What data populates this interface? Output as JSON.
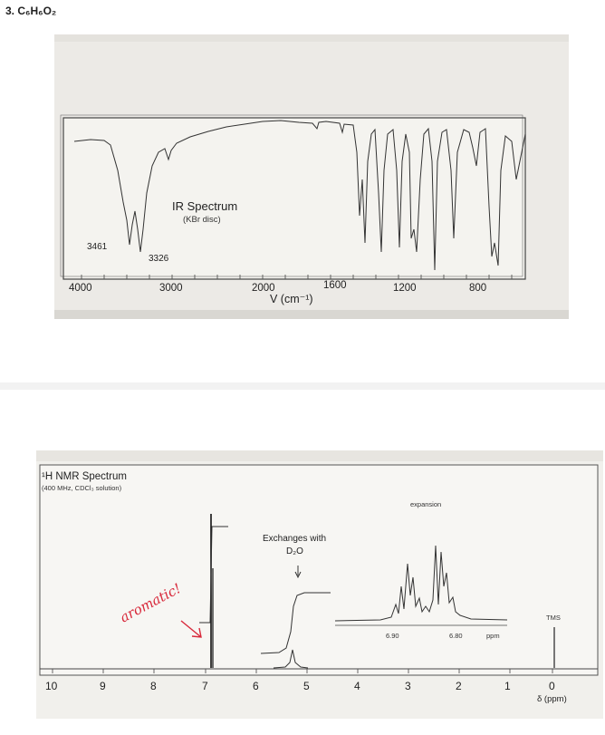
{
  "problem": {
    "title": "3. C₆H₆O₂"
  },
  "ir": {
    "title": "IR Spectrum",
    "subtitle": "(KBr disc)",
    "peak_labels": [
      "3461",
      "3326"
    ],
    "x_ticks": [
      "4000",
      "3000",
      "2000",
      "1600",
      "1200",
      "800"
    ],
    "x_axis_label": "V (cm⁻¹)"
  },
  "nmr": {
    "title": "¹H NMR Spectrum",
    "subtitle": "(400 MHz, CDCl₃ solution)",
    "expansion_label": "expansion",
    "expansion_ticks": [
      "6.90",
      "6.80",
      "ppm"
    ],
    "exchange_label_line1": "Exchanges with",
    "exchange_label_line2": "D₂O",
    "tms_label": "TMS",
    "x_ticks": [
      "10",
      "9",
      "8",
      "7",
      "6",
      "5",
      "4",
      "3",
      "2",
      "1",
      "0"
    ],
    "x_axis_label": "δ (ppm)",
    "handwritten_note": "aromatic!",
    "note_color": "#d8283a"
  }
}
